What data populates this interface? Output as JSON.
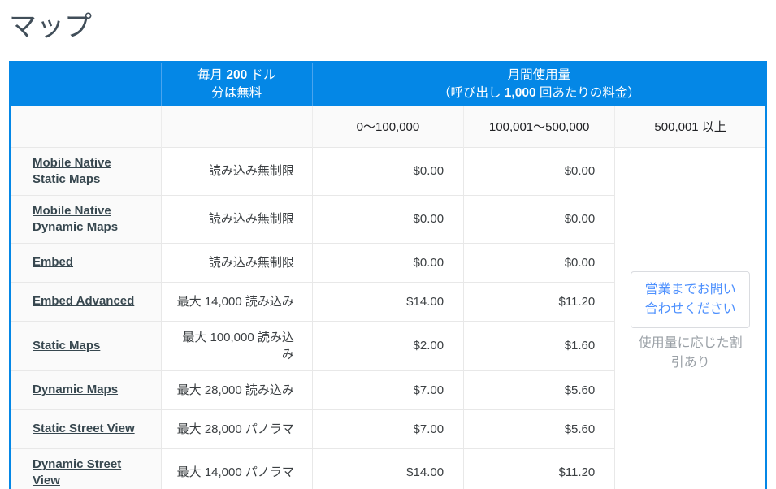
{
  "page": {
    "title": "マップ"
  },
  "table": {
    "header": {
      "free": {
        "l1_pre": "毎月 ",
        "l1_bold": "200",
        "l1_post": " ドル",
        "l2": "分は無料"
      },
      "usage": {
        "l1": "月間使用量",
        "l2_pre": "（呼び出し ",
        "l2_bold": "1,000",
        "l2_post": " 回あたりの料金）"
      }
    },
    "tiers": [
      "0〜100,000",
      "100,001〜500,000",
      "500,001 以上"
    ],
    "rows": [
      {
        "name": "Mobile Native Static Maps",
        "quota": "読み込み無制限",
        "price1": "$0.00",
        "price2": "$0.00"
      },
      {
        "name": "Mobile Native Dynamic Maps",
        "quota": "読み込み無制限",
        "price1": "$0.00",
        "price2": "$0.00"
      },
      {
        "name": "Embed",
        "quota": "読み込み無制限",
        "price1": "$0.00",
        "price2": "$0.00"
      },
      {
        "name": "Embed Advanced",
        "quota": "最大 14,000 読み込み",
        "price1": "$14.00",
        "price2": "$11.20"
      },
      {
        "name": "Static Maps",
        "quota": "最大 100,000 読み込み",
        "price1": "$2.00",
        "price2": "$1.60"
      },
      {
        "name": "Dynamic Maps",
        "quota": "最大 28,000 読み込み",
        "price1": "$7.00",
        "price2": "$5.60"
      },
      {
        "name": "Static Street View",
        "quota": "最大 28,000 パノラマ",
        "price1": "$7.00",
        "price2": "$5.60"
      },
      {
        "name": "Dynamic Street View",
        "quota": "最大 14,000 パノラマ",
        "price1": "$14.00",
        "price2": "$11.20"
      }
    ],
    "contact": {
      "button_label": "営業までお問い合わせください",
      "note": "使用量に応じた割引あり"
    }
  },
  "colors": {
    "header_blue": "#0487e6",
    "header_divider_blue": "#4aa4ee",
    "link_text": "#37474f",
    "button_text_blue": "#4d90fe",
    "note_gray": "#9aa0a6",
    "striped_bg": "#fafafa",
    "row_divider": "#e8e8e8",
    "title_gray": "#414e59"
  }
}
